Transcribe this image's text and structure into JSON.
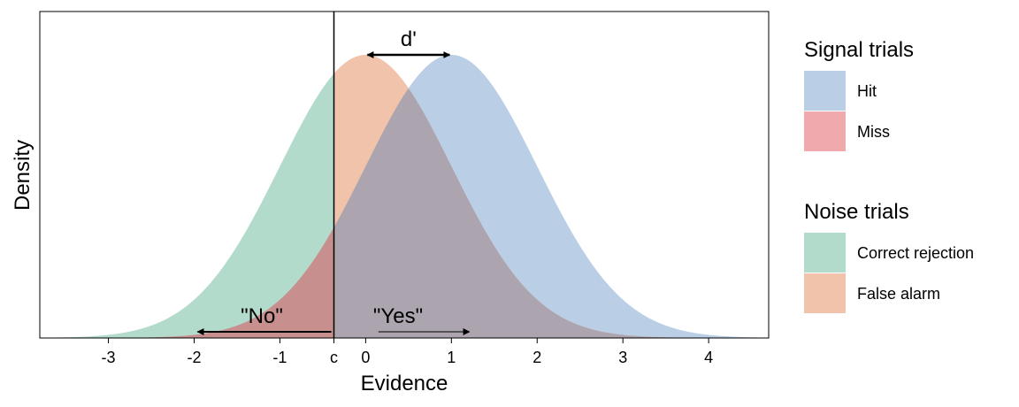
{
  "chart_data": {
    "type": "area",
    "title": "",
    "xlabel": "Evidence",
    "ylabel": "Density",
    "xlim": [
      -3.8,
      4.7
    ],
    "x_ticks": [
      "-3",
      "-2",
      "-1",
      "c",
      "0",
      "1",
      "2",
      "3",
      "4"
    ],
    "x_tick_values": [
      -3,
      -2,
      -1,
      -0.37,
      0,
      1,
      2,
      3,
      4
    ],
    "y_ticks": [],
    "grid": false,
    "criterion": -0.37,
    "series": [
      {
        "group": "Noise trials",
        "mean": 0,
        "sd": 1,
        "region": "below criterion",
        "name": "Correct rejection",
        "color": "#b3dbcb"
      },
      {
        "group": "Noise trials",
        "mean": 0,
        "sd": 1,
        "region": "above criterion",
        "name": "False alarm",
        "color": "#f0c3aa"
      },
      {
        "group": "Signal trials",
        "mean": 1,
        "sd": 1,
        "region": "above criterion",
        "name": "Hit",
        "color": "#bacee5"
      },
      {
        "group": "Signal trials",
        "mean": 1,
        "sd": 1,
        "region": "below criterion",
        "name": "Miss",
        "color": "#f0a9ad"
      }
    ],
    "overlap_color": "#aca5af",
    "noise_miss_overlap_color": "#c78f8d",
    "annotations": {
      "dprime": {
        "label": "d'",
        "from": 0,
        "to": 1
      },
      "no": {
        "label": "\"No\"",
        "from": -0.4,
        "to": -2.0
      },
      "yes": {
        "label": "\"Yes\"",
        "from": 0.2,
        "to": 1.25
      }
    },
    "legend": {
      "position": "right",
      "groups": [
        {
          "title": "Signal trials",
          "items": [
            {
              "label": "Hit",
              "color": "#bacee5"
            },
            {
              "label": "Miss",
              "color": "#f0a9ad"
            }
          ]
        },
        {
          "title": "Noise trials",
          "items": [
            {
              "label": "Correct rejection",
              "color": "#b3dbcb"
            },
            {
              "label": "False alarm",
              "color": "#f0c3aa"
            }
          ]
        }
      ]
    }
  }
}
